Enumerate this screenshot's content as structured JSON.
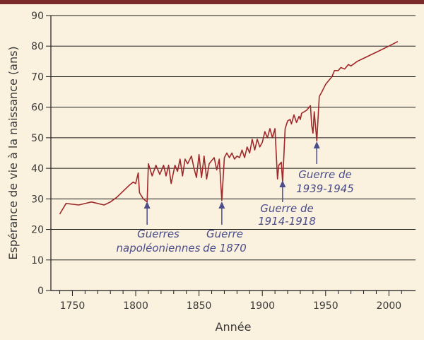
{
  "chart_data": {
    "type": "line",
    "title": "",
    "xlabel": "Année",
    "ylabel": "Espérance de vie à la naissance (ans)",
    "xlim": [
      1733,
      2021
    ],
    "ylim": [
      0,
      90
    ],
    "x_ticks": [
      1750,
      1800,
      1850,
      1900,
      1950,
      2000
    ],
    "y_ticks": [
      0,
      10,
      20,
      30,
      40,
      50,
      60,
      70,
      80,
      90
    ],
    "grid": "horizontal",
    "series": [
      {
        "color": "#a0282a",
        "points": [
          [
            1740,
            25
          ],
          [
            1745,
            28.5
          ],
          [
            1755,
            28
          ],
          [
            1765,
            29
          ],
          [
            1775,
            28
          ],
          [
            1780,
            29
          ],
          [
            1785,
            30.5
          ],
          [
            1795,
            34.5
          ],
          [
            1798,
            35.5
          ],
          [
            1800,
            35
          ],
          [
            1802,
            38.5
          ],
          [
            1803,
            32
          ],
          [
            1806,
            30
          ],
          [
            1809,
            29
          ],
          [
            1810,
            41.5
          ],
          [
            1813,
            37.5
          ],
          [
            1816,
            41
          ],
          [
            1819,
            38
          ],
          [
            1822,
            41
          ],
          [
            1824,
            37.5
          ],
          [
            1826,
            41
          ],
          [
            1828,
            35
          ],
          [
            1831,
            41
          ],
          [
            1833,
            39
          ],
          [
            1835,
            43
          ],
          [
            1837,
            37.5
          ],
          [
            1839,
            43
          ],
          [
            1841,
            41.5
          ],
          [
            1844,
            44
          ],
          [
            1846,
            40
          ],
          [
            1848,
            37
          ],
          [
            1850,
            44.5
          ],
          [
            1852,
            37
          ],
          [
            1854,
            44
          ],
          [
            1856,
            36.5
          ],
          [
            1858,
            41.5
          ],
          [
            1860,
            42.5
          ],
          [
            1862,
            43.5
          ],
          [
            1864,
            39.5
          ],
          [
            1866,
            43
          ],
          [
            1868,
            29.5
          ],
          [
            1870,
            43.5
          ],
          [
            1872,
            45
          ],
          [
            1874,
            43.5
          ],
          [
            1876,
            45
          ],
          [
            1878,
            43
          ],
          [
            1880,
            44
          ],
          [
            1882,
            43.5
          ],
          [
            1884,
            46
          ],
          [
            1886,
            43.5
          ],
          [
            1888,
            47
          ],
          [
            1890,
            45
          ],
          [
            1892,
            49.5
          ],
          [
            1894,
            46
          ],
          [
            1896,
            49.5
          ],
          [
            1898,
            47
          ],
          [
            1900,
            48.5
          ],
          [
            1902,
            52
          ],
          [
            1904,
            50
          ],
          [
            1906,
            53
          ],
          [
            1908,
            50
          ],
          [
            1910,
            53
          ],
          [
            1912,
            36.5
          ],
          [
            1913,
            41
          ],
          [
            1915,
            42
          ],
          [
            1916,
            35.5
          ],
          [
            1917,
            44
          ],
          [
            1918,
            53
          ],
          [
            1920,
            55.5
          ],
          [
            1922,
            56
          ],
          [
            1923,
            54.5
          ],
          [
            1925,
            57.5
          ],
          [
            1927,
            55
          ],
          [
            1929,
            57
          ],
          [
            1930,
            56
          ],
          [
            1931,
            58
          ],
          [
            1935,
            59
          ],
          [
            1938,
            60.5
          ],
          [
            1939,
            54
          ],
          [
            1940,
            51.5
          ],
          [
            1941,
            58.5
          ],
          [
            1943,
            49
          ],
          [
            1945,
            63.5
          ],
          [
            1947,
            65
          ],
          [
            1950,
            67.5
          ],
          [
            1955,
            70
          ],
          [
            1957,
            72
          ],
          [
            1960,
            72
          ],
          [
            1962,
            73
          ],
          [
            1965,
            72.5
          ],
          [
            1968,
            74
          ],
          [
            1970,
            73.5
          ],
          [
            1975,
            75
          ],
          [
            1980,
            76
          ],
          [
            1990,
            78
          ],
          [
            2000,
            80
          ],
          [
            2007,
            81.5
          ]
        ]
      }
    ],
    "annotations": [
      {
        "id": "napoleon",
        "lines": [
          "Guerres",
          "napoléoniennes"
        ],
        "arrow_x": 1809,
        "arrow_y": 30
      },
      {
        "id": "war1870",
        "lines": [
          "Guerre",
          "de 1870"
        ],
        "arrow_x": 1868,
        "arrow_y": 30
      },
      {
        "id": "ww1",
        "lines": [
          "Guerre de",
          "1914-1918"
        ],
        "arrow_x": 1916,
        "arrow_y": 37
      },
      {
        "id": "ww2",
        "lines": [
          "Guerre de",
          "1939-1945"
        ],
        "arrow_x": 1943,
        "arrow_y": 50
      }
    ]
  }
}
